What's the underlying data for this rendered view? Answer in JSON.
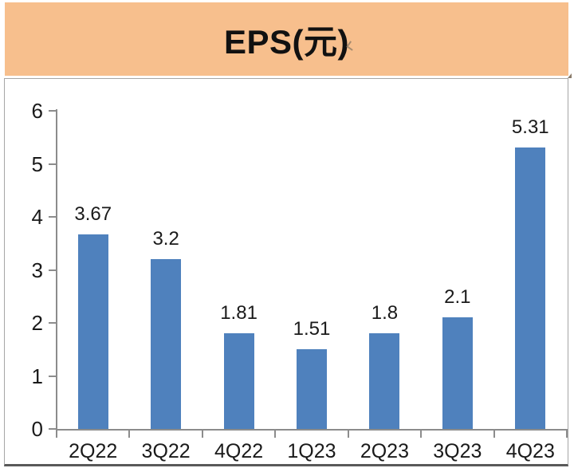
{
  "title_bar": {
    "text": "EPS(元)",
    "bg_color": "#F7BF8D",
    "text_color": "#111111"
  },
  "panel": {
    "bg_color": "#FFFFFF",
    "border_color": "#A6A6A6",
    "border_bottom_color": "#595959"
  },
  "chart_data": {
    "type": "bar",
    "title": "EPS(元)",
    "unit_label": "元",
    "categories": [
      "2Q22",
      "3Q22",
      "4Q22",
      "1Q23",
      "2Q23",
      "3Q23",
      "4Q23"
    ],
    "values": [
      3.67,
      3.2,
      1.81,
      1.51,
      1.8,
      2.1,
      5.31
    ],
    "value_labels": [
      "3.67",
      "3.2",
      "1.81",
      "1.51",
      "1.8",
      "2.1",
      "5.31"
    ],
    "ylim": [
      0,
      6
    ],
    "yticks": [
      "0",
      "1",
      "2",
      "3",
      "4",
      "5",
      "6"
    ],
    "grid": false,
    "legend": "none",
    "bar_color": "#4F81BD",
    "axis_color": "#8C8C8C",
    "label_color": "#1A1A1A"
  }
}
